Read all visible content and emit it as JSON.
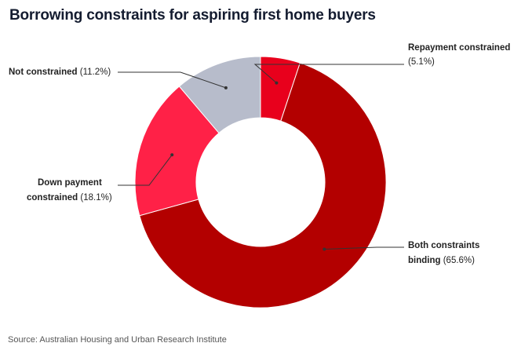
{
  "title": "Borrowing constraints for aspiring first home buyers",
  "source": "Source: Australian Housing and Urban Research Institute",
  "chart_data": {
    "type": "pie",
    "title": "Borrowing constraints for aspiring first home buyers",
    "donut": true,
    "slices": [
      {
        "label": "Repayment constrained",
        "value": 5.1,
        "display": "(5.1%)",
        "color": "#e8001c"
      },
      {
        "label": "Both constraints binding",
        "value": 65.6,
        "display": "(65.6%)",
        "color": "#b30000"
      },
      {
        "label": "Down payment constrained",
        "value": 18.1,
        "display": "(18.1%)",
        "color": "#ff2147"
      },
      {
        "label": "Not constrained",
        "value": 11.2,
        "display": "(11.2%)",
        "color": "#b7bccb"
      }
    ]
  }
}
